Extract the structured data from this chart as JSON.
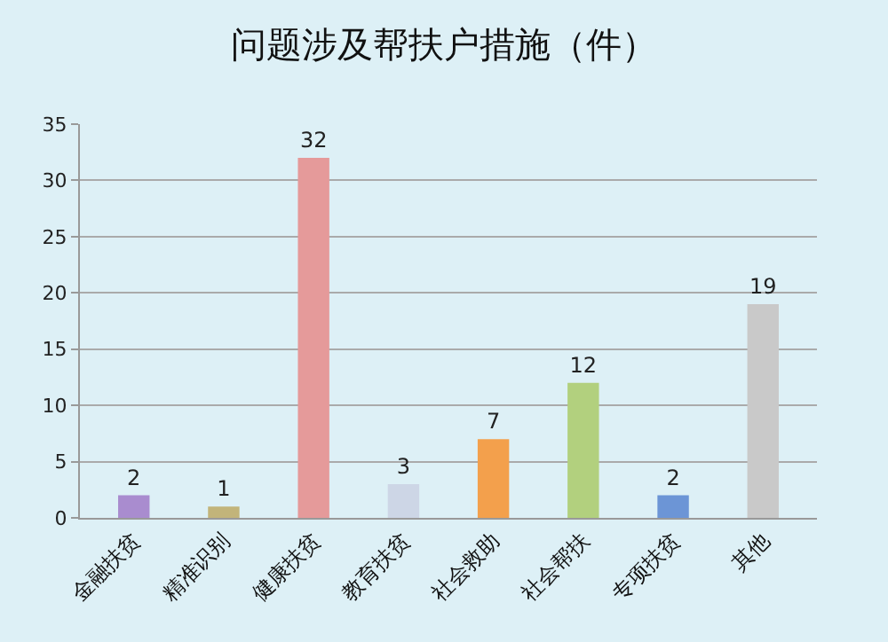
{
  "chart_data": {
    "type": "bar",
    "title": "问题涉及帮扶户措施（件）",
    "categories": [
      "金融扶贫",
      "精准识别",
      "健康扶贫",
      "教育扶贫",
      "社会救助",
      "社会帮扶",
      "专项扶贫",
      "其他"
    ],
    "values": [
      2,
      1,
      32,
      3,
      7,
      12,
      2,
      19
    ],
    "colors": [
      "#a98ccf",
      "#c2b47a",
      "#e59a9a",
      "#cdd6e6",
      "#f3a04c",
      "#b2d07e",
      "#6c95d6",
      "#c9c9c9"
    ],
    "ylim": [
      0,
      35
    ],
    "yticks": [
      0,
      5,
      10,
      15,
      20,
      25,
      30,
      35
    ],
    "grid": "y",
    "data_labels": true,
    "legend": false
  }
}
